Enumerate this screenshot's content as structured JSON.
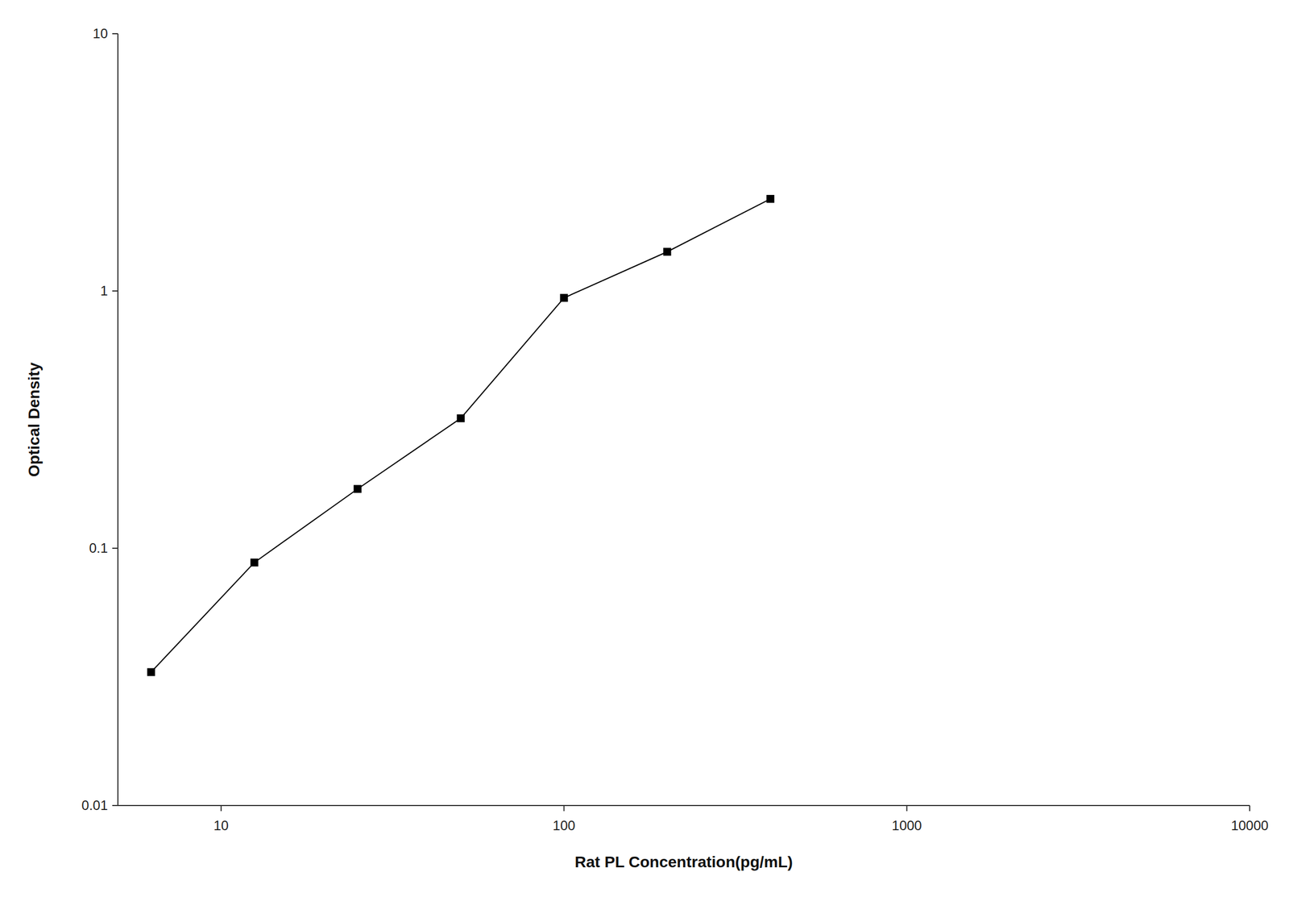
{
  "chart_data": {
    "type": "line",
    "x": [
      6.25,
      12.5,
      25,
      50,
      100,
      200,
      400
    ],
    "values": [
      0.033,
      0.088,
      0.17,
      0.32,
      0.94,
      1.42,
      2.28
    ],
    "color": "#000000",
    "marker": "square",
    "xlabel": "Rat PL Concentration(pg/mL)",
    "ylabel": "Optical Density",
    "xlim": [
      5,
      10000
    ],
    "ylim": [
      0.01,
      10
    ],
    "xticks": [
      10,
      100,
      1000,
      10000
    ],
    "yticks": [
      0.01,
      0.1,
      1,
      10
    ],
    "log": true,
    "grid": false
  }
}
